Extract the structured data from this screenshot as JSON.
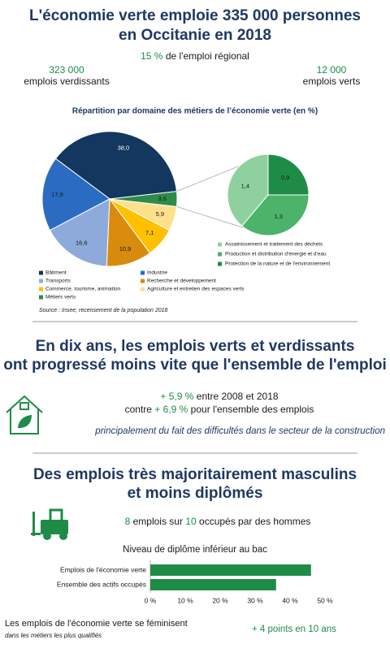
{
  "header": {
    "title": [
      "L'économie verte emploie 335 000 personnes",
      "en Occitanie en 2018"
    ],
    "share": {
      "value": "15 %",
      "text": "de l'emploi régional"
    },
    "left": {
      "value": "323 000",
      "text": "emplois verdissants"
    },
    "right": {
      "value": "12 000",
      "text": "emplois verts"
    }
  },
  "source": "Source : Insee, recensement de la population 2018",
  "evolution": {
    "title": [
      "En dix ans, les emplois verts et verdissants",
      "ont progressé moins vite que l'ensemble de l'emploi"
    ],
    "green_value": "+ 5,9 %",
    "green_text": "entre 2008 et 2018",
    "versus": "contre",
    "total_value": "+ 6,9 %",
    "total_text": "pour l'ensemble des emplois",
    "note": "principalement du fait des difficultés dans le secteur de la construction"
  },
  "gender": {
    "title": [
      "Des emplois très majoritairement masculins",
      "et moins diplômés"
    ],
    "men": "8",
    "text1": "emplois sur",
    "total": "10",
    "text2": "occupés par des hommes"
  },
  "footer": {
    "text": "Les emplois de l'économie verte se féminisent",
    "note": "dans les métiers les plus qualifiés",
    "value": "+ 4 points en 10 ans"
  },
  "chart_data": [
    {
      "type": "pie",
      "title": "Répartition par domaine des métiers de l’économie verte (en %)",
      "categories": [
        "Bâtiment",
        "Industrie",
        "Transports",
        "Recherche et développement",
        "Commerce, tourisme, animation",
        "Agriculture et entretien des espaces verts",
        "Métiers verts"
      ],
      "values": [
        38.0,
        17.9,
        16.6,
        10.9,
        7.1,
        5.9,
        3.6
      ],
      "value_labels": [
        "38,0",
        "17,9",
        "16,6",
        "10,9",
        "7,1",
        "5,9",
        "3,6"
      ],
      "colors": [
        "#13375e",
        "#2c6bc2",
        "#8eaadb",
        "#d88b0c",
        "#ffc000",
        "#ffe08a",
        "#2e8b4a"
      ],
      "secondary": {
        "categories": [
          "Assainissement et traitement des déchets",
          "Production et distribution d'énergie et d'eau",
          "Protection de la nature et de l'environnement"
        ],
        "values": [
          1.4,
          1.3,
          0.9
        ],
        "value_labels": [
          "1,4",
          "1,3",
          "0,9"
        ],
        "colors": [
          "#8fd19e",
          "#4bb36a",
          "#1e8c47"
        ]
      }
    },
    {
      "type": "bar",
      "title": "Niveau de diplôme inférieur au bac",
      "categories": [
        "Emplois de l'économie verte",
        "Ensemble des actifs occupés"
      ],
      "values": [
        46,
        36
      ],
      "color": "#1e8c47",
      "xlim": [
        0,
        50
      ],
      "xticks": [
        {
          "value": 0,
          "label": "0 %"
        },
        {
          "value": 10,
          "label": "10 %"
        },
        {
          "value": 20,
          "label": "20 %"
        },
        {
          "value": 30,
          "label": "30 %"
        },
        {
          "value": 40,
          "label": "40 %"
        },
        {
          "value": 50,
          "label": "50 %"
        }
      ],
      "grid": false
    }
  ]
}
